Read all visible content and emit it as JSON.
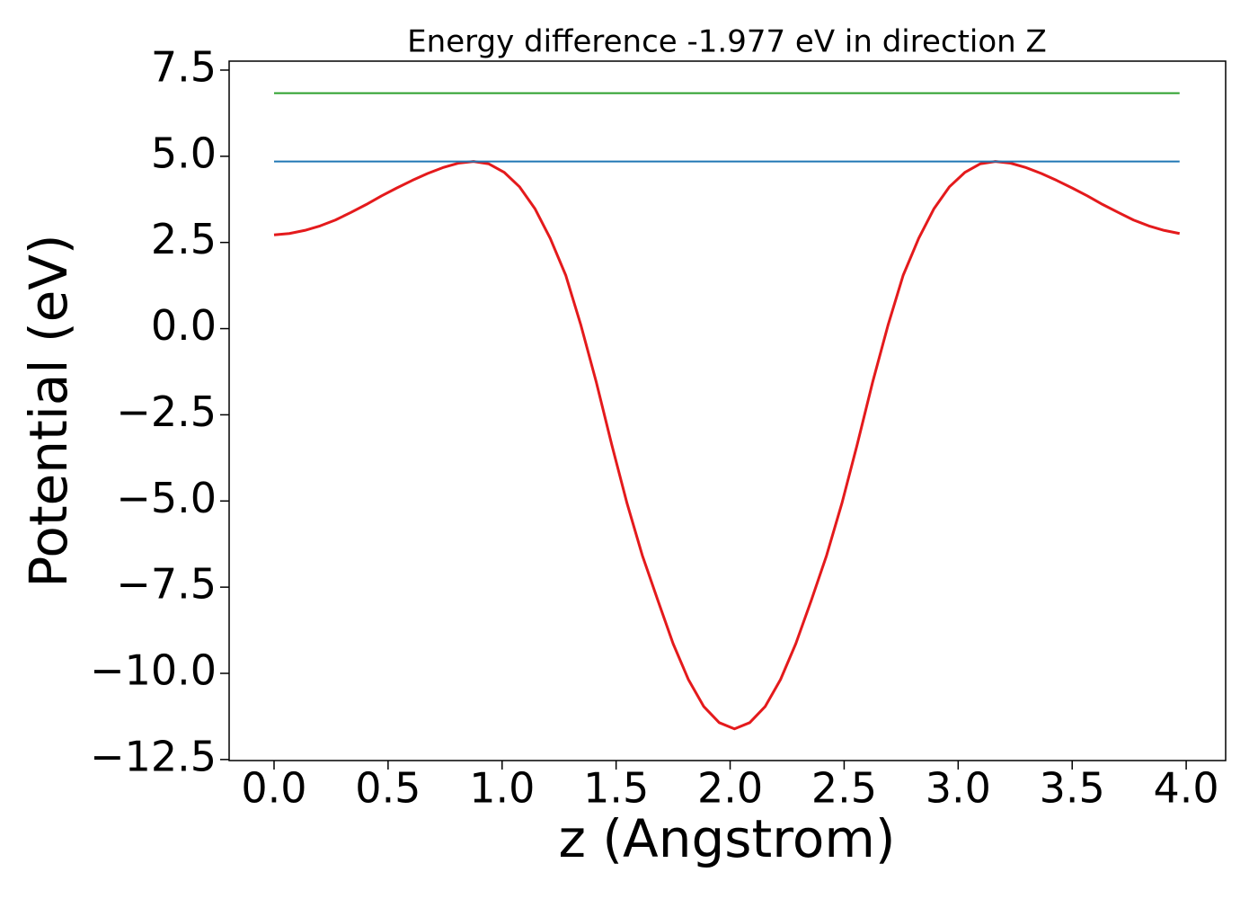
{
  "chart_data": {
    "type": "line",
    "title": "Energy difference -1.977 eV in direction Z",
    "xlabel": "z (Angstrom)",
    "ylabel": "Potential (eV)",
    "x": [
      0,
      0.067,
      0.135,
      0.202,
      0.269,
      0.337,
      0.404,
      0.471,
      0.538,
      0.606,
      0.673,
      0.74,
      0.808,
      0.875,
      0.942,
      1.01,
      1.077,
      1.144,
      1.211,
      1.279,
      1.346,
      1.413,
      1.481,
      1.548,
      1.615,
      1.683,
      1.75,
      1.817,
      1.884,
      1.952,
      2.019,
      2.086,
      2.154,
      2.221,
      2.288,
      2.356,
      2.423,
      2.49,
      2.557,
      2.625,
      2.692,
      2.759,
      2.827,
      2.894,
      2.961,
      3.029,
      3.096,
      3.163,
      3.23,
      3.298,
      3.365,
      3.432,
      3.5,
      3.567,
      3.634,
      3.702,
      3.769,
      3.836,
      3.903,
      3.971
    ],
    "series": [
      {
        "color": "#e41a1c",
        "values": [
          2.72,
          2.76,
          2.85,
          2.98,
          3.15,
          3.37,
          3.6,
          3.85,
          4.08,
          4.3,
          4.5,
          4.67,
          4.8,
          4.85,
          4.78,
          4.53,
          4.11,
          3.48,
          2.62,
          1.55,
          0.09,
          -1.55,
          -3.37,
          -5.07,
          -6.58,
          -7.88,
          -9.14,
          -10.18,
          -10.96,
          -11.43,
          -11.61,
          -11.43,
          -10.96,
          -10.18,
          -9.14,
          -7.88,
          -6.58,
          -5.07,
          -3.37,
          -1.55,
          0.09,
          1.55,
          2.62,
          3.48,
          4.11,
          4.53,
          4.78,
          4.85,
          4.8,
          4.67,
          4.5,
          4.3,
          4.08,
          3.85,
          3.6,
          3.37,
          3.15,
          2.98,
          2.85,
          2.76
        ]
      },
      {
        "color": "#1f77b4",
        "values": [
          4.85,
          4.85,
          4.85,
          4.85,
          4.85,
          4.85,
          4.85,
          4.85,
          4.85,
          4.85,
          4.85,
          4.85,
          4.85,
          4.85,
          4.85,
          4.85,
          4.85,
          4.85,
          4.85,
          4.85,
          4.85,
          4.85,
          4.85,
          4.85,
          4.85,
          4.85,
          4.85,
          4.85,
          4.85,
          4.85,
          4.85,
          4.85,
          4.85,
          4.85,
          4.85,
          4.85,
          4.85,
          4.85,
          4.85,
          4.85,
          4.85,
          4.85,
          4.85,
          4.85,
          4.85,
          4.85,
          4.85,
          4.85,
          4.85,
          4.85,
          4.85,
          4.85,
          4.85,
          4.85,
          4.85,
          4.85,
          4.85,
          4.85,
          4.85,
          4.85
        ]
      },
      {
        "color": "#2ca02c",
        "values": [
          6.83,
          6.83,
          6.83,
          6.83,
          6.83,
          6.83,
          6.83,
          6.83,
          6.83,
          6.83,
          6.83,
          6.83,
          6.83,
          6.83,
          6.83,
          6.83,
          6.83,
          6.83,
          6.83,
          6.83,
          6.83,
          6.83,
          6.83,
          6.83,
          6.83,
          6.83,
          6.83,
          6.83,
          6.83,
          6.83,
          6.83,
          6.83,
          6.83,
          6.83,
          6.83,
          6.83,
          6.83,
          6.83,
          6.83,
          6.83,
          6.83,
          6.83,
          6.83,
          6.83,
          6.83,
          6.83,
          6.83,
          6.83,
          6.83,
          6.83,
          6.83,
          6.83,
          6.83,
          6.83,
          6.83,
          6.83,
          6.83,
          6.83,
          6.83,
          6.83
        ]
      }
    ],
    "xlim": [
      -0.197,
      4.173
    ],
    "ylim": [
      -12.53,
      7.76
    ],
    "xticks": [
      {
        "value": 0,
        "label": "0.0"
      },
      0.5,
      {
        "value": 1,
        "label": "1.0"
      },
      1.5,
      {
        "value": 2,
        "label": "2.0"
      },
      2.5,
      {
        "value": 3,
        "label": "3.0"
      },
      3.5,
      {
        "value": 4,
        "label": "4.0"
      }
    ],
    "yticks": [
      {
        "value": -12.5,
        "label": "−12.5"
      },
      {
        "value": -10,
        "label": "−10.0"
      },
      {
        "value": -7.5,
        "label": "−7.5"
      },
      {
        "value": -5,
        "label": "−5.0"
      },
      {
        "value": -2.5,
        "label": "−2.5"
      },
      {
        "value": 0,
        "label": "0.0"
      },
      2.5,
      {
        "value": 5,
        "label": "5.0"
      },
      {
        "value": 7.5,
        "label": "7.5"
      }
    ],
    "grid": false
  }
}
